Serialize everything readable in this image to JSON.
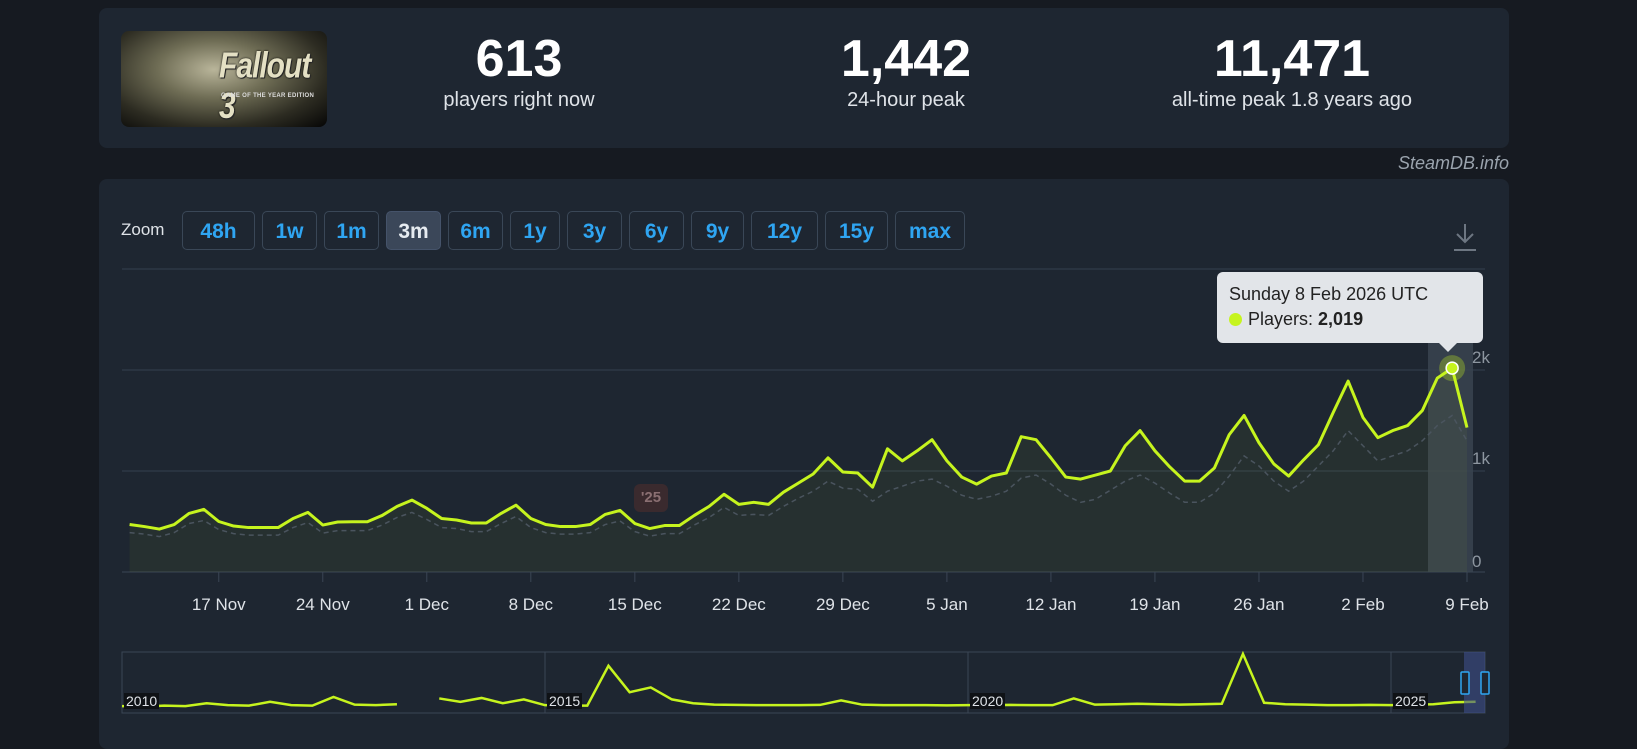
{
  "game": {
    "title_logo": "Fallout 3",
    "title_sub": "GAME OF THE YEAR EDITION"
  },
  "stats": [
    {
      "value": "613",
      "label": "players right now"
    },
    {
      "value": "1,442",
      "label": "24-hour peak"
    },
    {
      "value": "11,471",
      "label": "all-time peak 1.8 years ago"
    }
  ],
  "credit": "SteamDB.info",
  "zoom": {
    "label": "Zoom",
    "buttons": [
      "48h",
      "1w",
      "1m",
      "3m",
      "6m",
      "1y",
      "3y",
      "6y",
      "9y",
      "12y",
      "15y",
      "max"
    ],
    "active": "3m"
  },
  "icons": {
    "download": "download-icon"
  },
  "colors": {
    "line": "#c6f41e",
    "accent_button_text": "#2fa5f2",
    "card": "#1e2631",
    "background": "#161a21"
  },
  "tooltip": {
    "date": "Sunday 8 Feb 2026 UTC",
    "series_label": "Players:",
    "value": "2,019"
  },
  "year_marker": "'25",
  "chart_data": {
    "type": "line",
    "x_start": "2025-11-11",
    "x_end": "2026-02-09",
    "x_interval": "daily",
    "x_tick_labels": [
      "17 Nov",
      "24 Nov",
      "1 Dec",
      "8 Dec",
      "15 Dec",
      "22 Dec",
      "29 Dec",
      "5 Jan",
      "12 Jan",
      "19 Jan",
      "26 Jan",
      "2 Feb",
      "9 Feb"
    ],
    "y_tick_labels": [
      "0",
      "1k",
      "2k"
    ],
    "ylim": [
      0,
      3000
    ],
    "grid": true,
    "series": [
      {
        "name": "Players",
        "values": [
          470,
          450,
          425,
          470,
          580,
          620,
          500,
          455,
          440,
          440,
          440,
          530,
          590,
          465,
          495,
          497,
          497,
          560,
          650,
          712,
          630,
          530,
          515,
          485,
          485,
          580,
          662,
          530,
          470,
          450,
          450,
          470,
          570,
          610,
          480,
          430,
          460,
          460,
          560,
          650,
          770,
          670,
          690,
          670,
          790,
          880,
          970,
          1130,
          990,
          980,
          840,
          1220,
          1100,
          1200,
          1310,
          1100,
          940,
          870,
          950,
          980,
          1340,
          1310,
          1130,
          940,
          920,
          960,
          1000,
          1250,
          1400,
          1200,
          1040,
          900,
          900,
          1030,
          1360,
          1550,
          1280,
          1070,
          950,
          1110,
          1260,
          1580,
          1890,
          1530,
          1330,
          1400,
          1450,
          1600,
          1920,
          2019,
          1430
        ]
      },
      {
        "values": [
          390,
          375,
          350,
          390,
          480,
          510,
          420,
          380,
          365,
          365,
          365,
          440,
          490,
          385,
          410,
          410,
          410,
          465,
          540,
          590,
          520,
          440,
          430,
          400,
          400,
          480,
          550,
          440,
          390,
          375,
          375,
          390,
          470,
          505,
          400,
          355,
          380,
          380,
          465,
          540,
          640,
          560,
          570,
          560,
          650,
          730,
          800,
          900,
          830,
          820,
          700,
          800,
          850,
          900,
          920,
          850,
          760,
          720,
          750,
          800,
          930,
          960,
          870,
          760,
          690,
          720,
          810,
          900,
          960,
          880,
          780,
          690,
          690,
          780,
          950,
          1150,
          1050,
          900,
          800,
          900,
          1050,
          1200,
          1400,
          1250,
          1100,
          1150,
          1200,
          1300,
          1450,
          1550,
          1300
        ],
        "style": "dashed"
      }
    ],
    "highlight": {
      "date": "2026-02-08",
      "value": 2019
    }
  },
  "navigator": {
    "year_labels": [
      "2010",
      "2015",
      "2020",
      "2025"
    ],
    "x_start": 2010,
    "x_end": 2026.1,
    "interval": "quarterly",
    "values": [
      600,
      500,
      700,
      600,
      1200,
      800,
      700,
      1500,
      800,
      700,
      2500,
      900,
      800,
      1000,
      null,
      2200,
      1500,
      2300,
      1200,
      2000,
      800,
      700,
      700,
      9000,
      3500,
      4500,
      2000,
      1200,
      900,
      850,
      800,
      800,
      800,
      850,
      1800,
      900,
      800,
      800,
      800,
      750,
      800,
      800,
      850,
      800,
      800,
      2200,
      900,
      1000,
      1100,
      1000,
      900,
      1000,
      1100,
      11471,
      1300,
      1000,
      900,
      800,
      800,
      850,
      800,
      900,
      1000,
      1400,
      1500
    ],
    "selected_range": "3m"
  }
}
